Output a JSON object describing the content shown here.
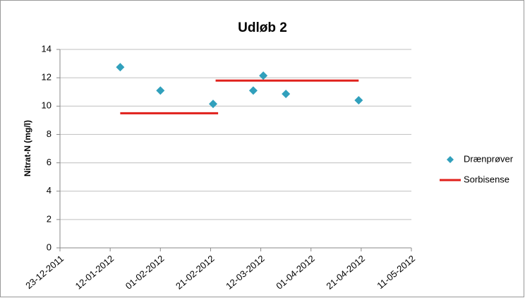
{
  "chart_data": {
    "type": "scatter",
    "title": "Udløb 2",
    "y_label": "Nitrat-N (mg/l)",
    "xlim": [
      "2011-12-23",
      "2012-05-11"
    ],
    "xticks": [
      {
        "value": "2011-12-23",
        "label": "23-12-2011"
      },
      {
        "value": "2012-01-12",
        "label": "12-01-2012"
      },
      {
        "value": "2012-02-01",
        "label": "01-02-2012"
      },
      {
        "value": "2012-02-21",
        "label": "21-02-2012"
      },
      {
        "value": "2012-03-12",
        "label": "12-03-2012"
      },
      {
        "value": "2012-04-01",
        "label": "01-04-2012"
      },
      {
        "value": "2012-04-21",
        "label": "21-04-2012"
      },
      {
        "value": "2012-05-11",
        "label": "11-05-2012"
      }
    ],
    "ylim": [
      0,
      14
    ],
    "yticks": [
      0,
      2,
      4,
      6,
      8,
      10,
      12,
      14
    ],
    "grid": true,
    "legend": "right",
    "series": [
      {
        "name": "Drænprøver",
        "color": "#31a0bc",
        "style": "markers",
        "x": [
          "2012-01-16",
          "2012-02-01",
          "2012-02-22",
          "2012-03-09",
          "2012-03-13",
          "2012-03-22",
          "2012-04-20"
        ],
        "values": [
          12.75,
          11.1,
          10.16,
          11.1,
          12.15,
          10.86,
          10.41
        ]
      },
      {
        "name": "Sorbisense",
        "color": "#e0201b",
        "style": "line",
        "x": [
          "2012-01-16",
          "2012-02-24",
          null,
          "2012-02-23",
          "2012-04-20"
        ],
        "values": [
          9.5,
          9.5,
          null,
          11.8,
          11.8
        ]
      }
    ]
  }
}
